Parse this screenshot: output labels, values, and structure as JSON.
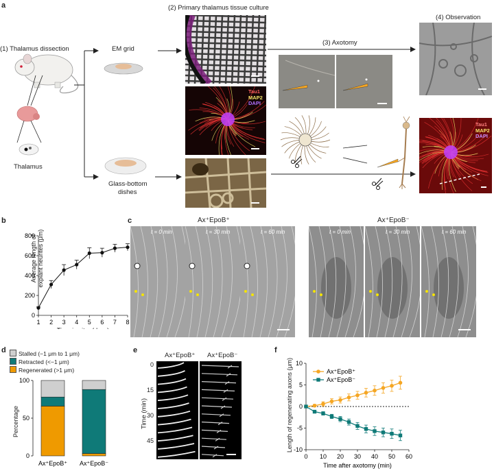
{
  "panel_a": {
    "label": "a",
    "step1": "(1) Thalamus dissection",
    "step2": "(2) Primary thalamus tissue culture",
    "step3": "(3) Axotomy",
    "step4": "(4) Observation",
    "em_grid": "EM grid",
    "thalamus": "Thalamus",
    "dish_line1": "Glass-bottom",
    "dish_line2": "dishes",
    "stain_tau1": "Tau1",
    "stain_map2": "MAP2",
    "stain_dapi": "DAPI"
  },
  "panel_c": {
    "label": "c",
    "group1": "Ax⁺EpoB⁺",
    "group2": "Ax⁺EpoB⁻",
    "t0": "t = 0 min",
    "t30": "t = 30 min",
    "t60": "t = 60 min"
  },
  "panel_e": {
    "label": "e",
    "col1": "Ax⁺EpoB⁺",
    "col2": "Ax⁺EpoB⁻",
    "ylabel": "Time (min)",
    "ticks": [
      "0",
      "15",
      "30",
      "45"
    ]
  },
  "chart_data": [
    {
      "panel": "b",
      "type": "line",
      "xlabel": "Time in vitro (days)",
      "ylabel_line1": "Average length of",
      "ylabel_line2": "explant neurites (μm)",
      "x": [
        1,
        2,
        3,
        4,
        5,
        6,
        7,
        8
      ],
      "y": [
        75,
        310,
        455,
        510,
        625,
        630,
        675,
        685
      ],
      "err": [
        10,
        40,
        55,
        45,
        55,
        45,
        40,
        35
      ],
      "xlim": [
        1,
        8
      ],
      "ylim": [
        0,
        800
      ],
      "yticks": [
        0,
        200,
        400,
        600,
        800
      ],
      "xticks": [
        1,
        2,
        3,
        4,
        5,
        6,
        7,
        8
      ]
    },
    {
      "panel": "d",
      "type": "bar",
      "ylabel": "Percentage",
      "categories": [
        "Ax⁺EpoB⁺",
        "Ax⁺EpoB⁻"
      ],
      "series": [
        {
          "name": "Regenerated (>1 μm)",
          "color": "#ef9a00",
          "values": [
            66,
            3
          ]
        },
        {
          "name": "Retracted (<−1 μm)",
          "color": "#0f7a78",
          "values": [
            12,
            85
          ]
        },
        {
          "name": "Stalled (−1 μm to 1 μm)",
          "color": "#cfcfcf",
          "values": [
            22,
            12
          ]
        }
      ],
      "legend_order": [
        "Stalled (−1 μm to 1 μm)",
        "Retracted (<−1 μm)",
        "Regenerated (>1 μm)"
      ],
      "ylim": [
        0,
        100
      ],
      "yticks": [
        0,
        50,
        100
      ]
    },
    {
      "panel": "f",
      "type": "line",
      "xlabel": "Time after axotomy (min)",
      "ylabel": "Length of regenerating axons (μm)",
      "x": [
        0,
        5,
        10,
        15,
        20,
        25,
        30,
        35,
        40,
        45,
        50,
        55
      ],
      "series": [
        {
          "name": "Ax⁺EpoB⁺",
          "color": "#f5a623",
          "values": [
            0,
            0.2,
            0.6,
            1.2,
            1.5,
            2.1,
            2.6,
            3.2,
            3.7,
            4.3,
            4.8,
            5.5
          ],
          "err": [
            0.1,
            0.3,
            0.5,
            0.6,
            0.7,
            0.8,
            0.9,
            1.0,
            1.1,
            1.2,
            1.3,
            1.5
          ]
        },
        {
          "name": "Ax⁺EpoB⁻",
          "color": "#0f7a78",
          "values": [
            0,
            -1.2,
            -1.6,
            -2.3,
            -2.9,
            -3.6,
            -4.5,
            -5.2,
            -5.7,
            -6.0,
            -6.3,
            -6.7
          ],
          "err": [
            0.1,
            0.3,
            0.4,
            0.5,
            0.6,
            0.7,
            0.8,
            0.9,
            1.0,
            1.0,
            1.1,
            1.2
          ]
        }
      ],
      "xlim": [
        0,
        60
      ],
      "ylim": [
        -10,
        10
      ],
      "xticks": [
        0,
        10,
        20,
        30,
        40,
        50,
        60
      ],
      "yticks": [
        -10,
        -5,
        0,
        5,
        10
      ],
      "legend": "top-left"
    }
  ]
}
